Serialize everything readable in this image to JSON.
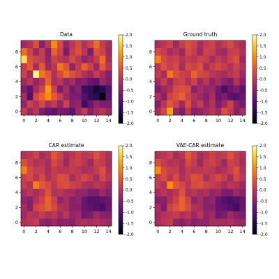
{
  "chart_data": [
    {
      "type": "heatmap",
      "title": "Data",
      "x_ticks": [
        "0",
        "2",
        "4",
        "6",
        "8",
        "10",
        "12",
        "14"
      ],
      "y_ticks": [
        "0",
        "2",
        "4",
        "6",
        "8"
      ],
      "xlim": [
        -0.5,
        14.5
      ],
      "ylim": [
        -0.5,
        9.5
      ],
      "colorbar": {
        "ticks": [
          "2.0",
          "1.5",
          "1.0",
          "0.5",
          "0.0",
          "-0.5",
          "-1.0",
          "-1.5",
          "-2.0"
        ],
        "range": [
          -2.0,
          2.0
        ]
      },
      "values": [
        [
          0.1,
          -0.3,
          0.0,
          -0.6,
          -0.8,
          -0.9,
          -0.6,
          -0.7,
          -0.9,
          -0.3,
          0.1,
          -0.5,
          -0.2,
          0.0,
          -0.3
        ],
        [
          -0.4,
          0.2,
          -0.1,
          0.3,
          -0.2,
          0.1,
          -0.4,
          0.2,
          -0.5,
          -0.4,
          -1.2,
          -0.8,
          -0.4,
          -0.6,
          -0.6
        ],
        [
          -0.2,
          -1.0,
          0.3,
          0.6,
          1.0,
          0.5,
          0.1,
          -0.3,
          -0.6,
          -0.6,
          -1.0,
          -1.3,
          -1.4,
          -1.9,
          -0.9
        ],
        [
          -0.6,
          -0.9,
          -0.2,
          0.2,
          1.1,
          0.2,
          -0.6,
          -0.2,
          -0.7,
          -0.5,
          -1.2,
          -1.3,
          -1.6,
          -1.4,
          -1.0
        ],
        [
          -0.3,
          0.0,
          -0.4,
          -0.1,
          0.6,
          -0.2,
          0.0,
          -0.4,
          -0.2,
          -0.6,
          -0.5,
          -0.8,
          -0.9,
          -0.3,
          -0.6
        ],
        [
          0.2,
          -0.3,
          1.9,
          0.8,
          0.5,
          -0.1,
          0.3,
          0.7,
          0.4,
          0.2,
          -0.1,
          -0.3,
          0.1,
          -0.2,
          -0.5
        ],
        [
          0.1,
          0.5,
          -0.2,
          0.5,
          -0.3,
          0.0,
          0.8,
          0.5,
          -0.4,
          0.1,
          0.6,
          0.2,
          -0.3,
          0.5,
          0.0
        ],
        [
          1.7,
          0.4,
          0.2,
          0.1,
          -0.4,
          0.2,
          0.0,
          -0.1,
          0.3,
          0.0,
          -0.4,
          -0.2,
          0.1,
          0.7,
          -0.2
        ],
        [
          0.7,
          0.2,
          -0.3,
          0.1,
          -0.5,
          0.6,
          0.2,
          -0.6,
          0.1,
          0.4,
          0.0,
          -0.6,
          0.4,
          0.2,
          -0.3
        ],
        [
          -0.3,
          -0.1,
          0.4,
          -0.5,
          0.0,
          1.0,
          0.3,
          -0.4,
          0.0,
          0.3,
          -0.1,
          0.2,
          0.7,
          0.1,
          -0.2
        ]
      ]
    },
    {
      "type": "heatmap",
      "title": "Ground truth",
      "x_ticks": [
        "0",
        "2",
        "4",
        "6",
        "8",
        "10",
        "12",
        "14"
      ],
      "y_ticks": [
        "0",
        "2",
        "4",
        "6",
        "8"
      ],
      "xlim": [
        -0.5,
        14.5
      ],
      "ylim": [
        -0.5,
        9.5
      ],
      "colorbar": {
        "ticks": [
          "2.0",
          "1.5",
          "1.0",
          "0.5",
          "0.0",
          "-0.5",
          "-1.0",
          "-1.5",
          "-2.0"
        ],
        "range": [
          -2.0,
          2.0
        ]
      },
      "values": [
        [
          -0.2,
          0.3,
          1.2,
          -0.3,
          -0.6,
          0.1,
          -0.5,
          -0.4,
          -0.2,
          0.0,
          -0.3,
          0.4,
          0.1,
          -0.5,
          -0.2
        ],
        [
          -0.5,
          0.0,
          0.5,
          0.2,
          -0.3,
          0.4,
          -0.2,
          0.1,
          -0.4,
          -0.1,
          -0.6,
          -0.3,
          0.2,
          -0.4,
          -0.7
        ],
        [
          -0.1,
          -0.5,
          0.2,
          0.4,
          0.6,
          0.2,
          -0.1,
          -0.3,
          -0.5,
          -0.2,
          -0.8,
          -0.6,
          -0.9,
          -1.0,
          -0.8
        ],
        [
          -0.6,
          -0.3,
          -0.1,
          0.3,
          0.4,
          0.3,
          -0.5,
          -0.2,
          -0.4,
          -0.3,
          -0.7,
          -1.1,
          -0.8,
          -0.6,
          -0.9
        ],
        [
          -0.2,
          0.1,
          -0.3,
          0.1,
          0.2,
          -0.1,
          0.2,
          -0.3,
          0.0,
          -0.4,
          -0.2,
          -0.5,
          -0.6,
          -0.1,
          -0.5
        ],
        [
          0.1,
          -0.2,
          0.8,
          0.4,
          0.2,
          0.1,
          0.6,
          0.3,
          0.2,
          0.0,
          -0.1,
          -0.2,
          0.0,
          0.1,
          -0.3
        ],
        [
          0.0,
          0.4,
          0.1,
          0.3,
          -0.2,
          0.3,
          0.2,
          0.4,
          -0.2,
          0.1,
          0.3,
          0.1,
          -0.1,
          0.2,
          -0.1
        ],
        [
          0.9,
          0.3,
          0.1,
          0.2,
          -0.1,
          0.1,
          0.0,
          0.2,
          0.1,
          -0.2,
          0.1,
          -0.1,
          0.2,
          0.4,
          -0.3
        ],
        [
          0.3,
          0.1,
          -0.2,
          0.0,
          -0.3,
          0.3,
          0.1,
          -0.3,
          0.2,
          0.1,
          -0.2,
          -0.3,
          0.1,
          0.2,
          -0.1
        ],
        [
          -0.2,
          0.0,
          0.2,
          -0.3,
          0.1,
          0.4,
          0.2,
          -0.2,
          0.1,
          0.2,
          -0.1,
          0.1,
          0.3,
          0.0,
          -0.2
        ]
      ]
    },
    {
      "type": "heatmap",
      "title": "CAR estimate",
      "x_ticks": [
        "0",
        "2",
        "4",
        "6",
        "8",
        "10",
        "12",
        "14"
      ],
      "y_ticks": [
        "0",
        "2",
        "4",
        "6",
        "8"
      ],
      "xlim": [
        -0.5,
        14.5
      ],
      "ylim": [
        -0.5,
        9.5
      ],
      "colorbar": {
        "ticks": [
          "2.0",
          "1.5",
          "1.0",
          "0.5",
          "0.0",
          "-0.5",
          "-1.0",
          "-1.5",
          "-2.0"
        ],
        "range": [
          -2.0,
          2.0
        ]
      },
      "values": [
        [
          -0.1,
          0.0,
          0.1,
          -0.4,
          -0.5,
          -0.3,
          -0.5,
          -0.4,
          -0.5,
          -0.2,
          -0.1,
          -0.2,
          -0.1,
          -0.2,
          -0.3
        ],
        [
          -0.3,
          0.0,
          -0.1,
          0.1,
          -0.1,
          0.0,
          -0.3,
          0.0,
          -0.4,
          -0.3,
          -0.7,
          -0.6,
          -0.3,
          -0.5,
          -0.5
        ],
        [
          -0.2,
          -0.5,
          0.2,
          0.4,
          0.6,
          0.3,
          -0.1,
          -0.2,
          -0.5,
          -0.5,
          -0.8,
          -0.9,
          -1.0,
          -1.1,
          -0.8
        ],
        [
          -0.4,
          -0.5,
          -0.1,
          0.2,
          0.6,
          0.2,
          -0.4,
          -0.2,
          -0.5,
          -0.4,
          -0.8,
          -1.0,
          -1.0,
          -0.9,
          -0.8
        ],
        [
          -0.2,
          0.0,
          -0.2,
          0.0,
          0.4,
          -0.1,
          0.0,
          -0.2,
          -0.2,
          -0.4,
          -0.4,
          -0.6,
          -0.6,
          -0.3,
          -0.5
        ],
        [
          0.1,
          -0.1,
          0.9,
          0.5,
          0.3,
          0.0,
          0.3,
          0.4,
          0.2,
          0.1,
          -0.1,
          -0.2,
          0.0,
          -0.1,
          -0.3
        ],
        [
          0.1,
          0.3,
          0.0,
          0.3,
          -0.1,
          0.1,
          0.4,
          0.3,
          -0.2,
          0.1,
          0.3,
          0.1,
          -0.2,
          0.3,
          0.0
        ],
        [
          0.9,
          0.3,
          0.1,
          0.1,
          -0.2,
          0.1,
          0.0,
          0.0,
          0.1,
          0.0,
          -0.2,
          -0.1,
          0.1,
          0.4,
          -0.1
        ],
        [
          0.4,
          0.1,
          -0.1,
          0.0,
          -0.2,
          0.3,
          0.1,
          -0.3,
          0.1,
          0.2,
          0.0,
          -0.3,
          0.2,
          0.1,
          -0.2
        ],
        [
          -0.1,
          0.0,
          0.2,
          -0.2,
          0.0,
          0.5,
          0.2,
          -0.2,
          0.0,
          0.2,
          0.0,
          0.1,
          0.4,
          0.1,
          -0.1
        ]
      ]
    },
    {
      "type": "heatmap",
      "title": "VAE-CAR estimate",
      "x_ticks": [
        "0",
        "2",
        "4",
        "6",
        "8",
        "10",
        "12",
        "14"
      ],
      "y_ticks": [
        "0",
        "2",
        "4",
        "6",
        "8"
      ],
      "xlim": [
        -0.5,
        14.5
      ],
      "ylim": [
        -0.5,
        9.5
      ],
      "colorbar": {
        "ticks": [
          "2.0",
          "1.5",
          "1.0",
          "0.5",
          "0.0",
          "-0.5",
          "-1.0",
          "-1.5",
          "-2.0"
        ],
        "range": [
          -2.0,
          2.0
        ]
      },
      "values": [
        [
          -0.2,
          0.0,
          0.1,
          -0.4,
          -0.5,
          -0.3,
          -0.5,
          -0.4,
          -0.4,
          -0.2,
          -0.2,
          -0.2,
          -0.1,
          -0.3,
          -0.3
        ],
        [
          -0.3,
          -0.1,
          0.0,
          0.1,
          -0.1,
          0.0,
          -0.3,
          0.0,
          -0.4,
          -0.3,
          -0.7,
          -0.6,
          -0.3,
          -0.5,
          -0.6
        ],
        [
          -0.2,
          -0.6,
          0.2,
          0.4,
          0.6,
          0.3,
          -0.1,
          -0.2,
          -0.5,
          -0.5,
          -0.8,
          -0.9,
          -1.0,
          -1.2,
          -0.8
        ],
        [
          -0.5,
          -0.5,
          -0.1,
          0.2,
          0.6,
          0.2,
          -0.4,
          -0.2,
          -0.5,
          -0.4,
          -0.8,
          -1.0,
          -1.1,
          -1.0,
          -0.8
        ],
        [
          -0.2,
          0.0,
          -0.2,
          0.0,
          0.4,
          -0.1,
          0.0,
          -0.2,
          -0.1,
          -0.4,
          -0.3,
          -0.6,
          -0.6,
          -0.3,
          -0.5
        ],
        [
          0.1,
          -0.1,
          1.0,
          0.5,
          0.3,
          0.0,
          0.3,
          0.4,
          0.2,
          0.1,
          0.0,
          -0.2,
          0.0,
          -0.1,
          -0.3
        ],
        [
          0.1,
          0.3,
          0.0,
          0.3,
          -0.1,
          0.1,
          0.4,
          0.3,
          -0.2,
          0.1,
          0.3,
          0.1,
          -0.2,
          0.3,
          0.0
        ],
        [
          1.0,
          0.3,
          0.1,
          0.1,
          -0.2,
          0.1,
          0.0,
          0.0,
          0.1,
          0.0,
          -0.2,
          -0.1,
          0.1,
          0.4,
          -0.1
        ],
        [
          0.4,
          0.1,
          -0.1,
          0.0,
          -0.2,
          0.3,
          0.1,
          -0.3,
          0.1,
          0.2,
          0.0,
          -0.3,
          0.2,
          0.1,
          -0.2
        ],
        [
          -0.1,
          0.0,
          0.2,
          -0.2,
          0.0,
          0.5,
          0.2,
          -0.2,
          0.0,
          0.2,
          0.0,
          0.1,
          0.4,
          0.1,
          -0.1
        ]
      ]
    }
  ]
}
